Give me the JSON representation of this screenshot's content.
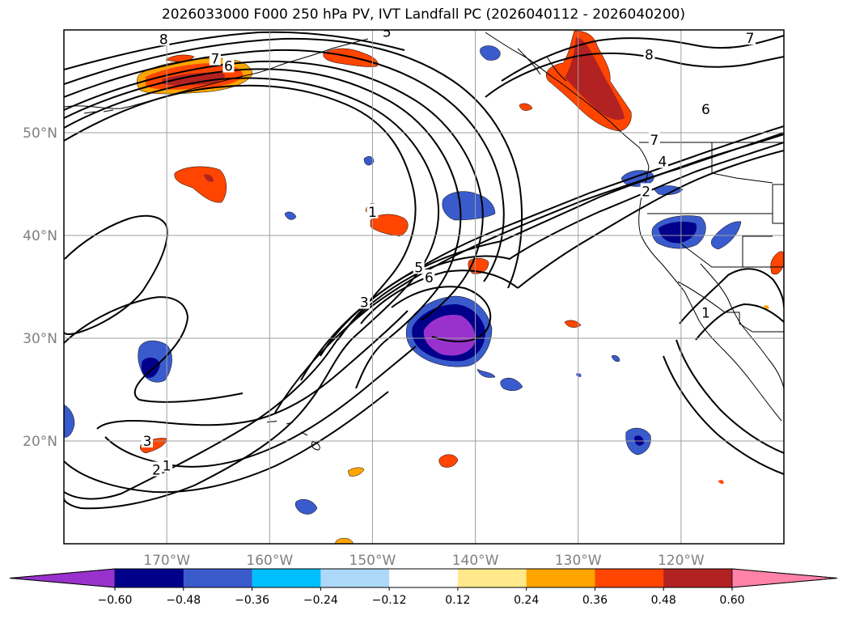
{
  "title": "2026033000 F000 250 hPa PV, IVT Landfall PC (2026040112 - 2026040200)",
  "map": {
    "lon_range": [
      -180,
      -110
    ],
    "lat_range": [
      10,
      60
    ],
    "lat_ticks": [
      {
        "value": 20,
        "label": "20°N"
      },
      {
        "value": 30,
        "label": "30°N"
      },
      {
        "value": 40,
        "label": "40°N"
      },
      {
        "value": 50,
        "label": "50°N"
      }
    ],
    "lon_ticks": [
      {
        "value": -170,
        "label": "170°W"
      },
      {
        "value": -160,
        "label": "160°W"
      },
      {
        "value": -150,
        "label": "150°W"
      },
      {
        "value": -140,
        "label": "140°W"
      },
      {
        "value": -130,
        "label": "130°W"
      },
      {
        "value": -120,
        "label": "120°W"
      }
    ],
    "gridlines": true
  },
  "colorbar": {
    "levels": [
      -0.6,
      -0.48,
      -0.36,
      -0.24,
      -0.12,
      0.12,
      0.24,
      0.36,
      0.48,
      0.6
    ],
    "labels": [
      "−0.60",
      "−0.48",
      "−0.36",
      "−0.24",
      "−0.12",
      "0.12",
      "0.24",
      "0.36",
      "0.48",
      "0.60"
    ],
    "colors": [
      "#9932cc",
      "#00008b",
      "#3a5bcc",
      "#00bfff",
      "#add8f7",
      "#ffffff",
      "#ffe98a",
      "#ffa500",
      "#ff4500",
      "#b22222",
      "#ff82a9"
    ]
  },
  "pv_contour_labels": [
    {
      "text": "8",
      "lon": -170.3,
      "lat": 59.1
    },
    {
      "text": "7",
      "lon": -165.3,
      "lat": 57.2
    },
    {
      "text": "6",
      "lon": -164.0,
      "lat": 56.5
    },
    {
      "text": "5",
      "lon": -148.6,
      "lat": 59.8
    },
    {
      "text": "7",
      "lon": -113.3,
      "lat": 59.2
    },
    {
      "text": "8",
      "lon": -123.1,
      "lat": 57.6
    },
    {
      "text": "6",
      "lon": -117.6,
      "lat": 52.3
    },
    {
      "text": "7",
      "lon": -122.6,
      "lat": 49.3
    },
    {
      "text": "4",
      "lon": -121.8,
      "lat": 47.2
    },
    {
      "text": "2",
      "lon": -123.4,
      "lat": 44.3
    },
    {
      "text": "1",
      "lon": -150.0,
      "lat": 42.3
    },
    {
      "text": "5",
      "lon": -145.5,
      "lat": 36.9
    },
    {
      "text": "6",
      "lon": -144.5,
      "lat": 35.9
    },
    {
      "text": "3",
      "lon": -150.8,
      "lat": 33.5
    },
    {
      "text": "3",
      "lon": -171.9,
      "lat": 20.0
    },
    {
      "text": "2",
      "lon": -171.0,
      "lat": 17.2
    },
    {
      "text": "1",
      "lon": -170.0,
      "lat": 17.6
    },
    {
      "text": "1",
      "lon": -117.6,
      "lat": 32.5
    }
  ]
}
